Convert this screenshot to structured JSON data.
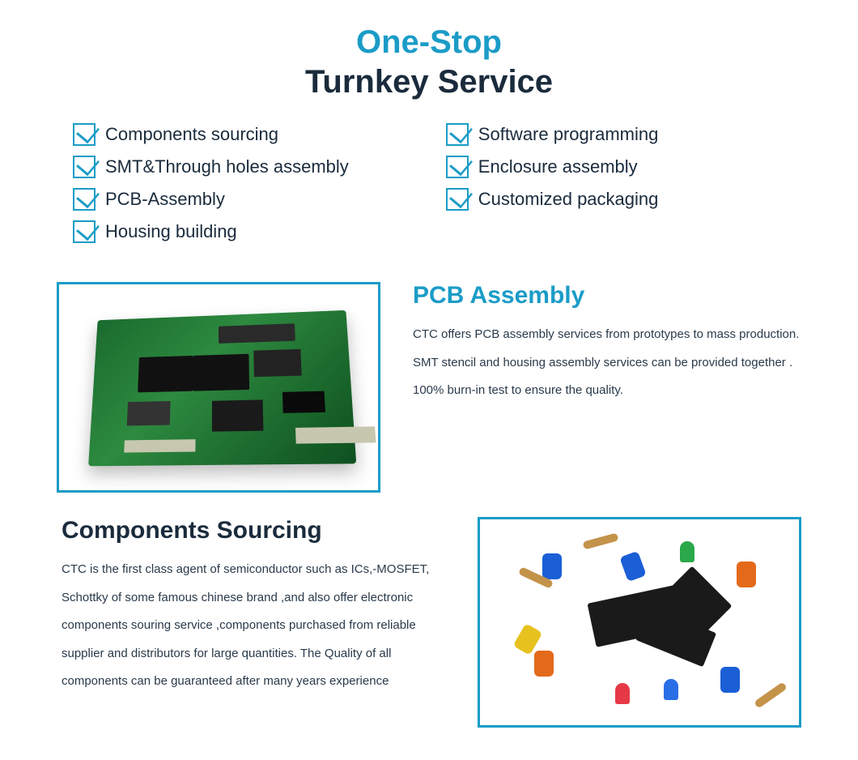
{
  "colors": {
    "accent": "#1b9cc7",
    "text_dark": "#1a2b3c",
    "body_text": "#2a3a4a",
    "background": "#ffffff",
    "pcb_green": "#2d8a3f",
    "chip_black": "#1a1a1a"
  },
  "header": {
    "line1": "One-Stop",
    "line1_color": "#1b9cc7",
    "line2": "Turnkey Service",
    "line2_color": "#1a2b3c",
    "fontsize": 40
  },
  "features": {
    "left": [
      "Components sourcing",
      "SMT&Through holes assembly",
      "PCB-Assembly",
      "Housing building"
    ],
    "right": [
      "Software programming",
      "Enclosure assembly",
      "Customized packaging"
    ],
    "label_fontsize": 22,
    "icon_color": "#1b9cc7"
  },
  "section1": {
    "title": "PCB Assembly",
    "title_color": "#1b9cc7",
    "title_fontsize": 30,
    "body": "CTC offers PCB assembly services from prototypes to mass production. SMT stencil and housing assembly services can be provided together . 100% burn-in test to ensure the quality.",
    "image_semantic": "green-pcb-board",
    "frame_border_color": "#1b9cc7"
  },
  "section2": {
    "title": "Components Sourcing",
    "title_color": "#1a2b3c",
    "title_fontsize": 30,
    "body": "CTC is the first class agent of semiconductor such as ICs,-MOSFET, Schottky of some famous chinese brand ,and also offer electronic components souring service ,components purchased from reliable supplier and distributors for large quantities. The Quality of all components can be guaranteed  after many years experience",
    "image_semantic": "electronic-components-pile",
    "frame_border_color": "#1b9cc7"
  }
}
